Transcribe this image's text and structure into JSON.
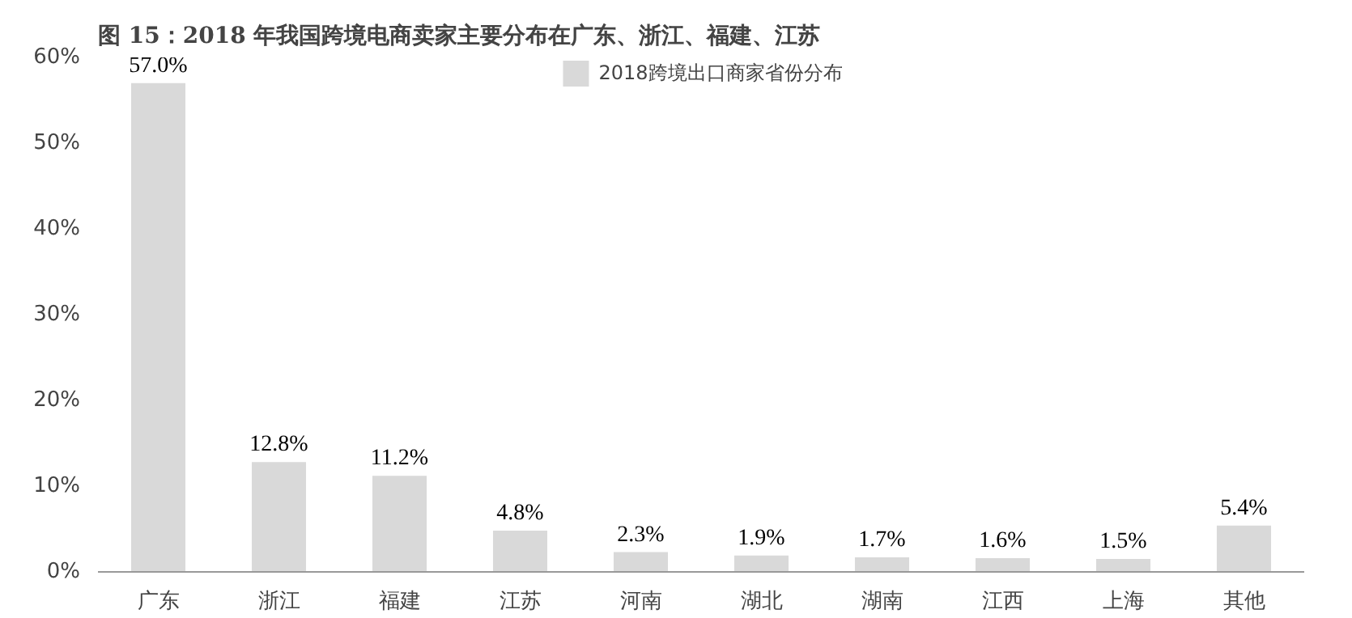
{
  "chart_data": {
    "type": "bar",
    "title": "图 15：2018 年我国跨境电商卖家主要分布在广东、浙江、福建、江苏",
    "categories": [
      "广东",
      "浙江",
      "福建",
      "江苏",
      "河南",
      "湖北",
      "湖南",
      "江西",
      "上海",
      "其他"
    ],
    "series": [
      {
        "name": "2018跨境出口商家省份分布",
        "color": "#d9d9d9",
        "values": [
          57.0,
          12.8,
          11.2,
          4.8,
          2.3,
          1.9,
          1.7,
          1.6,
          1.5,
          5.4
        ],
        "value_labels": [
          "57.0%",
          "12.8%",
          "11.2%",
          "4.8%",
          "2.3%",
          "1.9%",
          "1.7%",
          "1.6%",
          "1.5%",
          "5.4%"
        ]
      }
    ],
    "ylim": [
      0,
      60
    ],
    "yticks": [
      {
        "value": 0,
        "label": "0%"
      },
      {
        "value": 10,
        "label": "10%"
      },
      {
        "value": 20,
        "label": "20%"
      },
      {
        "value": 30,
        "label": "30%"
      },
      {
        "value": 40,
        "label": "40%"
      },
      {
        "value": 50,
        "label": "50%"
      },
      {
        "value": 60,
        "label": "60%"
      }
    ],
    "grid": false,
    "legend": "top"
  }
}
